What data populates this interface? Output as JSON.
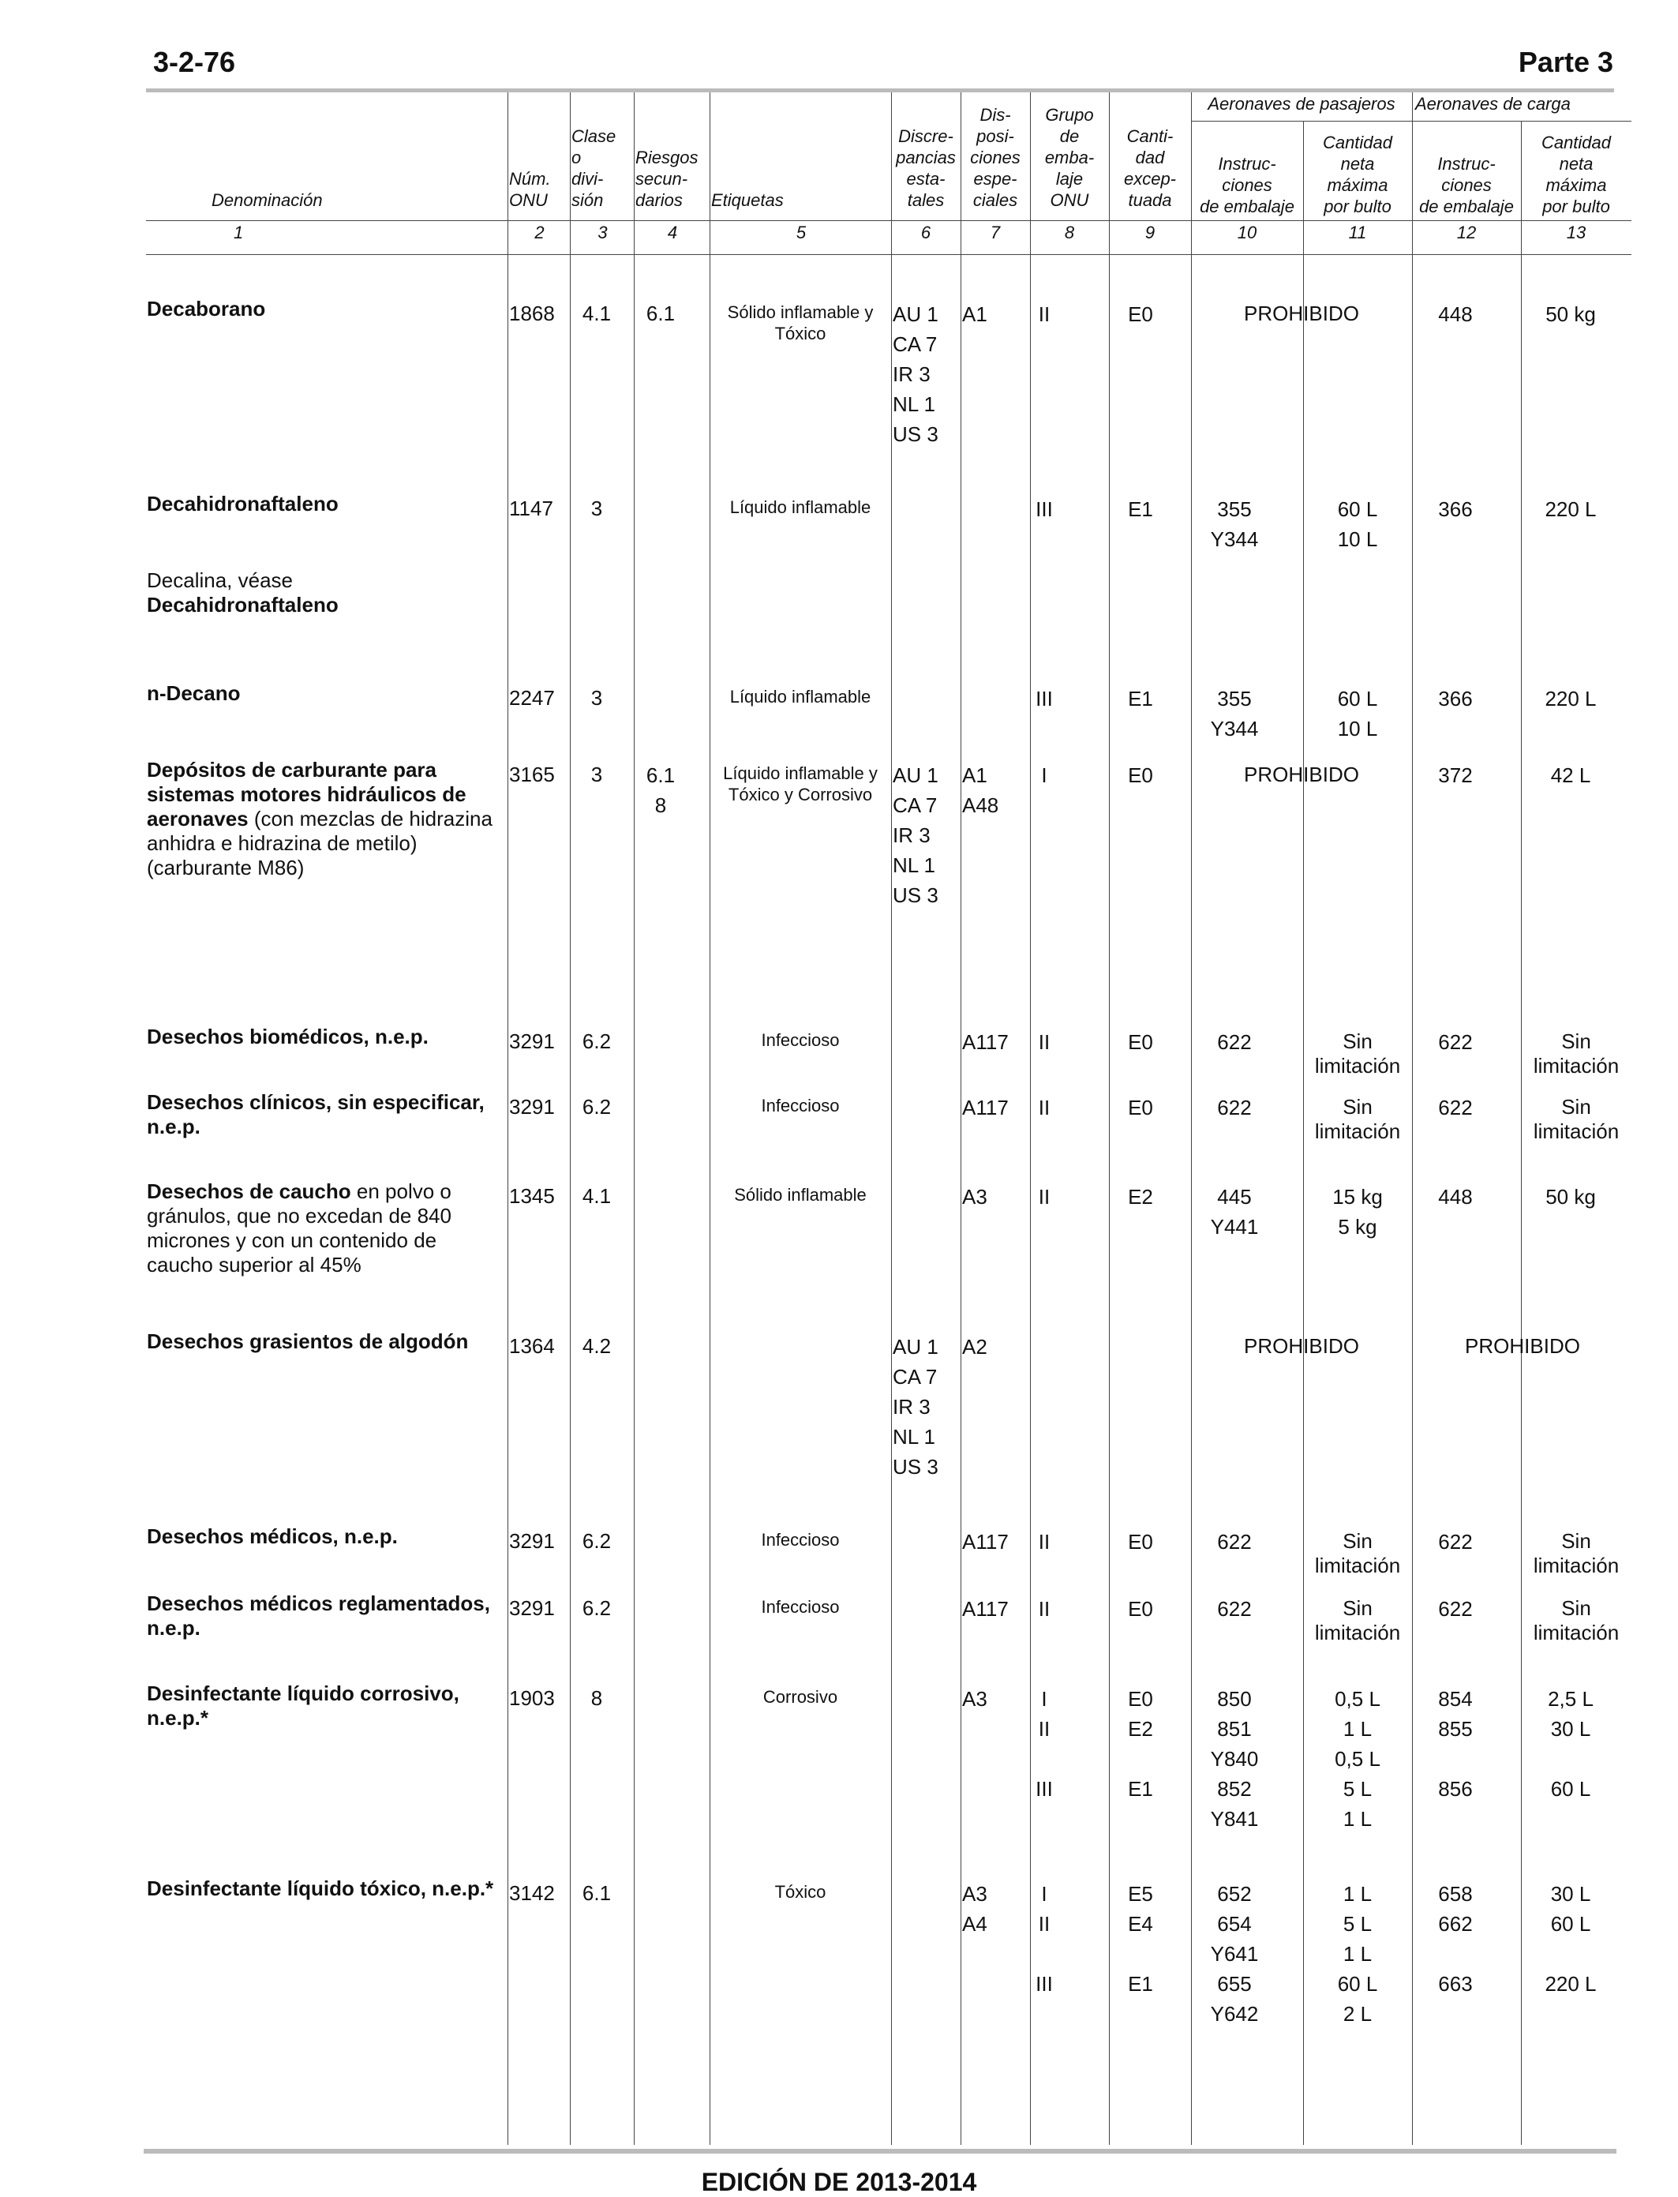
{
  "page": {
    "number": "3-2-76",
    "part": "Parte 3",
    "footer": "EDICIÓN DE 2013-2014"
  },
  "columns": {
    "group_passenger": "Aeronaves de pasajeros",
    "group_cargo": "Aeronaves de carga",
    "c1": "Denominación",
    "c2": [
      "Núm.",
      "ONU"
    ],
    "c3": [
      "Clase",
      "o",
      "divi-",
      "sión"
    ],
    "c4": [
      "Riesgos",
      "secun-",
      "darios"
    ],
    "c5": "Etiquetas",
    "c6": [
      "Discre-",
      "pancias",
      "esta-",
      "tales"
    ],
    "c7": [
      "Dis-",
      "posi-",
      "ciones",
      "espe-",
      "ciales"
    ],
    "c8": [
      "Grupo",
      "de",
      "emba-",
      "laje",
      "ONU"
    ],
    "c9": [
      "Canti-",
      "dad",
      "excep-",
      "tuada"
    ],
    "c10": [
      "Instruc-",
      "ciones",
      "de embalaje"
    ],
    "c11": [
      "Cantidad",
      "neta",
      "máxima",
      "por bulto"
    ],
    "c12": [
      "Instruc-",
      "ciones",
      "de embalaje"
    ],
    "c13": [
      "Cantidad",
      "neta",
      "máxima",
      "por bulto"
    ],
    "numbers": [
      "1",
      "2",
      "3",
      "4",
      "5",
      "6",
      "7",
      "8",
      "9",
      "10",
      "11",
      "12",
      "13"
    ]
  },
  "rows": [
    {
      "name_bold": "Decaborano",
      "un": "1868",
      "cls": "4.1",
      "sub": "6.1",
      "labels": [
        "Sólido inflamable y",
        "Tóxico"
      ],
      "disc": [
        "AU 1",
        "CA 7",
        "IR 3",
        "NL 1",
        "US 3"
      ],
      "sp": [
        "A1"
      ],
      "pg": [
        "II"
      ],
      "eq": [
        "E0"
      ],
      "prohibited_pax": "PROHIBIDO",
      "cargo_pi": [
        "448"
      ],
      "cargo_qty": [
        "50 kg"
      ]
    },
    {
      "name_bold": "Decahidronaftaleno",
      "un": "1147",
      "cls": "3",
      "labels": [
        "Líquido inflamable"
      ],
      "pg": [
        "III"
      ],
      "eq": [
        "E1"
      ],
      "pax_pi": [
        "355",
        "Y344"
      ],
      "pax_qty": [
        "60 L",
        "10 L"
      ],
      "cargo_pi": [
        "366"
      ],
      "cargo_qty": [
        "220 L"
      ]
    },
    {
      "name_plain": "Decalina, véase",
      "name_bold2": "Decahidronaftaleno"
    },
    {
      "name_bold": "n-Decano",
      "un": "2247",
      "cls": "3",
      "labels": [
        "Líquido inflamable"
      ],
      "pg": [
        "III"
      ],
      "eq": [
        "E1"
      ],
      "pax_pi": [
        "355",
        "Y344"
      ],
      "pax_qty": [
        "60 L",
        "10 L"
      ],
      "cargo_pi": [
        "366"
      ],
      "cargo_qty": [
        "220 L"
      ]
    },
    {
      "name_bold": "Depósitos de carburante para sistemas motores hidráulicos de aeronaves",
      "name_rest": " (con mezclas de hidrazina anhidra e hidrazina de metilo) (carburante M86)",
      "un": "3165",
      "cls": "3",
      "sub": [
        "6.1",
        "8"
      ],
      "labels": [
        "Líquido inflamable y",
        "Tóxico y Corrosivo"
      ],
      "disc": [
        "AU 1",
        "CA 7",
        "IR 3",
        "NL 1",
        "US 3"
      ],
      "sp": [
        "A1",
        "A48"
      ],
      "pg": [
        "I"
      ],
      "eq": [
        "E0"
      ],
      "prohibited_pax": "PROHIBIDO",
      "cargo_pi": [
        "372"
      ],
      "cargo_qty": [
        "42 L"
      ]
    },
    {
      "name_bold": "Desechos biomédicos, n.e.p.",
      "un": "3291",
      "cls": "6.2",
      "labels": [
        "Infeccioso"
      ],
      "sp": [
        "A117"
      ],
      "pg": [
        "II"
      ],
      "eq": [
        "E0"
      ],
      "pax_pi": [
        "622"
      ],
      "pax_qty": [
        "Sin",
        "limitación"
      ],
      "cargo_pi": [
        "622"
      ],
      "cargo_qty": [
        "Sin",
        "limitación"
      ]
    },
    {
      "name_bold": "Desechos clínicos, sin especificar, n.e.p.",
      "un": "3291",
      "cls": "6.2",
      "labels": [
        "Infeccioso"
      ],
      "sp": [
        "A117"
      ],
      "pg": [
        "II"
      ],
      "eq": [
        "E0"
      ],
      "pax_pi": [
        "622"
      ],
      "pax_qty": [
        "Sin",
        "limitación"
      ],
      "cargo_pi": [
        "622"
      ],
      "cargo_qty": [
        "Sin",
        "limitación"
      ]
    },
    {
      "name_bold": "Desechos de caucho",
      "name_rest": " en polvo o gránulos, que no excedan de 840 micrones y con un contenido de caucho superior al 45%",
      "un": "1345",
      "cls": "4.1",
      "labels": [
        "Sólido inflamable"
      ],
      "sp": [
        "A3"
      ],
      "pg": [
        "II"
      ],
      "eq": [
        "E2"
      ],
      "pax_pi": [
        "445",
        "Y441"
      ],
      "pax_qty": [
        "15 kg",
        "5 kg"
      ],
      "cargo_pi": [
        "448"
      ],
      "cargo_qty": [
        "50 kg"
      ]
    },
    {
      "name_bold": "Desechos grasientos de algodón",
      "un": "1364",
      "cls": "4.2",
      "disc": [
        "AU 1",
        "CA 7",
        "IR 3",
        "NL 1",
        "US 3"
      ],
      "sp": [
        "A2"
      ],
      "prohibited_pax": "PROHIBIDO",
      "prohibited_cargo": "PROHIBIDO"
    },
    {
      "name_bold": "Desechos médicos, n.e.p.",
      "un": "3291",
      "cls": "6.2",
      "labels": [
        "Infeccioso"
      ],
      "sp": [
        "A117"
      ],
      "pg": [
        "II"
      ],
      "eq": [
        "E0"
      ],
      "pax_pi": [
        "622"
      ],
      "pax_qty": [
        "Sin",
        "limitación"
      ],
      "cargo_pi": [
        "622"
      ],
      "cargo_qty": [
        "Sin",
        "limitación"
      ]
    },
    {
      "name_bold": "Desechos médicos reglamentados, n.e.p.",
      "un": "3291",
      "cls": "6.2",
      "labels": [
        "Infeccioso"
      ],
      "sp": [
        "A117"
      ],
      "pg": [
        "II"
      ],
      "eq": [
        "E0"
      ],
      "pax_pi": [
        "622"
      ],
      "pax_qty": [
        "Sin",
        "limitación"
      ],
      "cargo_pi": [
        "622"
      ],
      "cargo_qty": [
        "Sin",
        "limitación"
      ]
    },
    {
      "name_bold": "Desinfectante líquido corrosivo, n.e.p.*",
      "un": "1903",
      "cls": "8",
      "labels": [
        "Corrosivo"
      ],
      "sp": [
        "A3"
      ],
      "pg": [
        "I",
        "II",
        "",
        "III"
      ],
      "eq": [
        "E0",
        "E2",
        "",
        "E1"
      ],
      "pax_pi": [
        "850",
        "851",
        "Y840",
        "852",
        "Y841"
      ],
      "pax_qty": [
        "0,5 L",
        "1 L",
        "0,5 L",
        "5 L",
        "1 L"
      ],
      "cargo_pi": [
        "854",
        "855",
        "",
        "856"
      ],
      "cargo_qty": [
        "2,5 L",
        "30 L",
        "",
        "60 L"
      ]
    },
    {
      "name_bold": "Desinfectante líquido tóxico, n.e.p.*",
      "un": "3142",
      "cls": "6.1",
      "labels": [
        "Tóxico"
      ],
      "sp": [
        "A3",
        "A4"
      ],
      "pg": [
        "I",
        "II",
        "",
        "III"
      ],
      "eq": [
        "E5",
        "E4",
        "",
        "E1"
      ],
      "pax_pi": [
        "652",
        "654",
        "Y641",
        "655",
        "Y642"
      ],
      "pax_qty": [
        "1 L",
        "5 L",
        "1 L",
        "60 L",
        "2 L"
      ],
      "cargo_pi": [
        "658",
        "662",
        "",
        "663"
      ],
      "cargo_qty": [
        "30 L",
        "60 L",
        "",
        "220 L"
      ]
    }
  ]
}
